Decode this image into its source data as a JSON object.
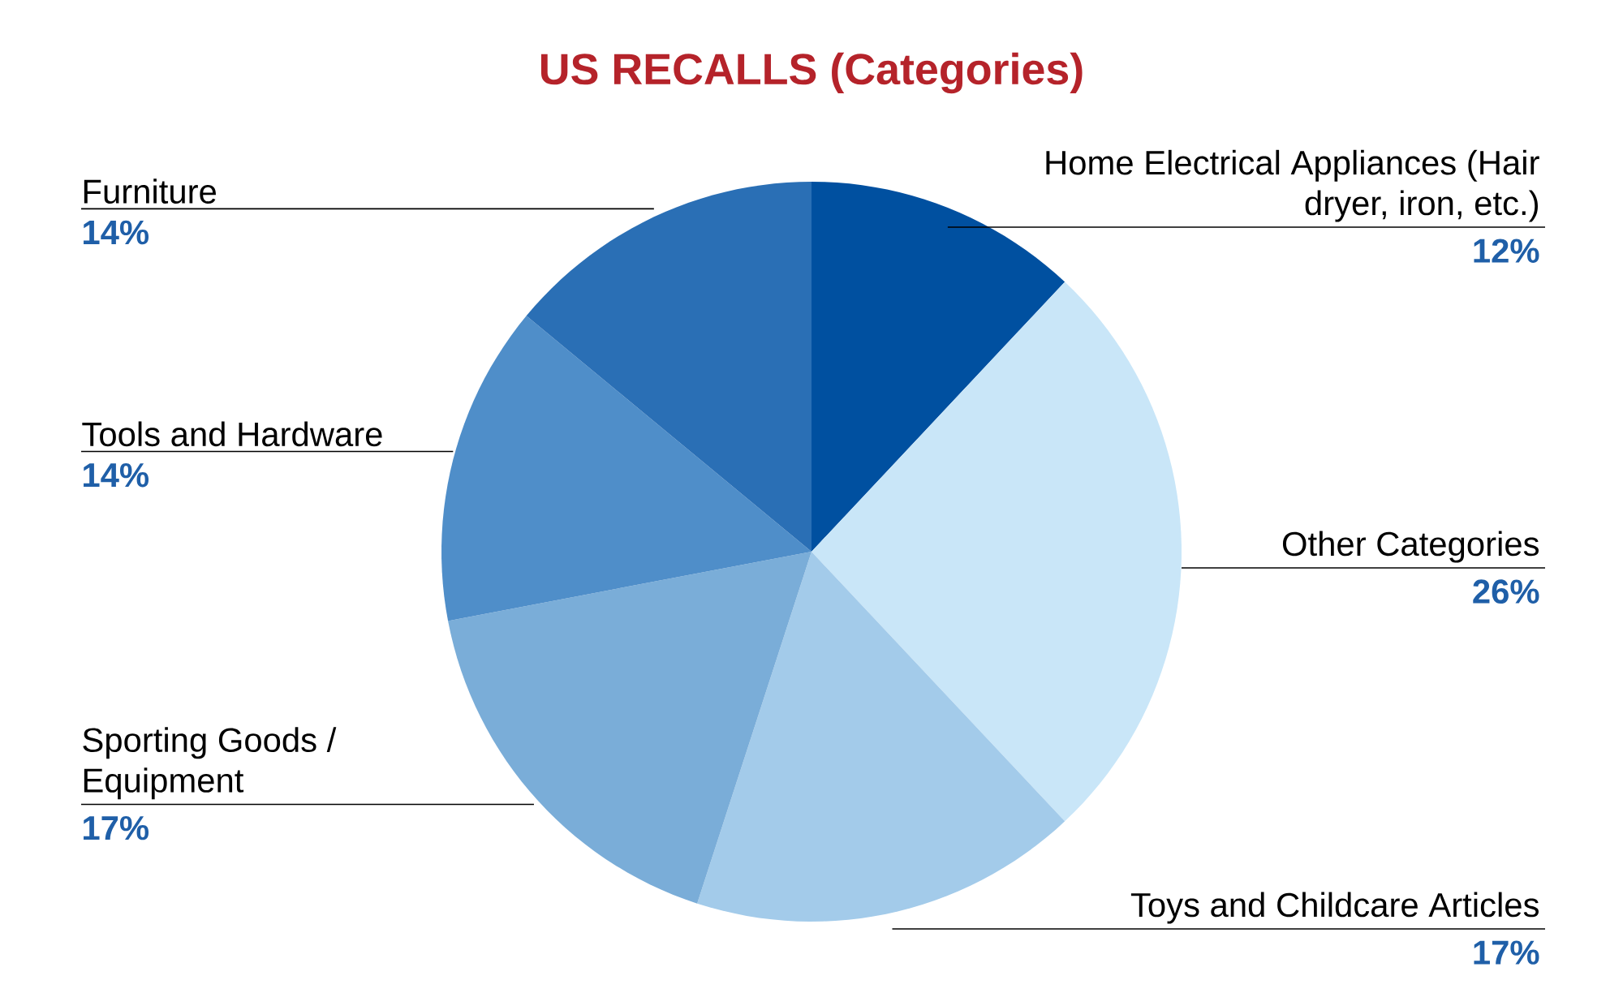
{
  "chart_data": {
    "type": "pie",
    "title": "US RECALLS (Categories)",
    "categories": [
      "Home Electrical Appliances (Hair dryer, iron, etc.)",
      "Other Categories",
      "Toys and Childcare Articles",
      "Sporting Goods / Equipment",
      "Tools and Hardware",
      "Furniture"
    ],
    "values": [
      12,
      26,
      17,
      17,
      14,
      14
    ],
    "value_labels": [
      "12%",
      "26%",
      "17%",
      "17%",
      "14%",
      "14%"
    ],
    "colors": [
      "#0050a0",
      "#c9e6f8",
      "#a3cbea",
      "#7aadd8",
      "#4f8ec9",
      "#2a6fb5"
    ]
  }
}
